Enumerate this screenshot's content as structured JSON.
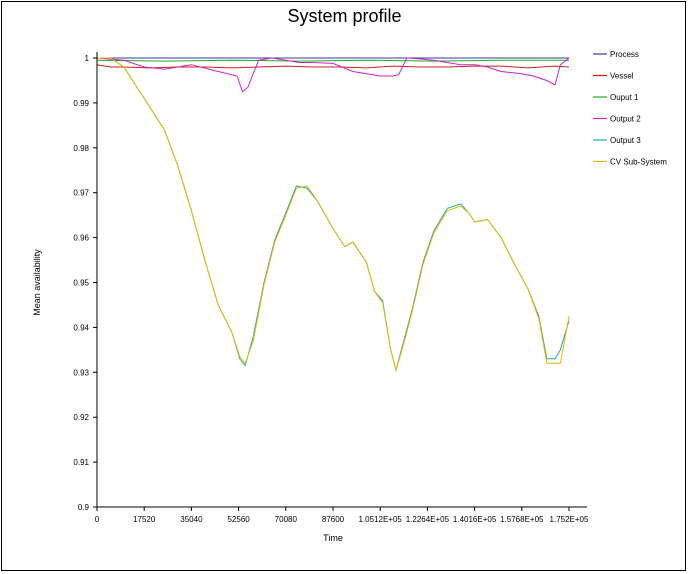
{
  "chart_data": {
    "type": "line",
    "title": "System profile",
    "xlabel": "Time",
    "ylabel": "Mean availability",
    "xlim": [
      0,
      175200
    ],
    "ylim": [
      0.9,
      1.0
    ],
    "x_ticks": [
      {
        "value": 0,
        "label": "0"
      },
      {
        "value": 17520,
        "label": "17520"
      },
      {
        "value": 35040,
        "label": "35040"
      },
      {
        "value": 52560,
        "label": "52560"
      },
      {
        "value": 70080,
        "label": "70080"
      },
      {
        "value": 87600,
        "label": "87600"
      },
      {
        "value": 105120,
        "label": "1.0512E+05"
      },
      {
        "value": 122640,
        "label": "1.2264E+05"
      },
      {
        "value": 140160,
        "label": "1.4016E+05"
      },
      {
        "value": 157680,
        "label": "1.5768E+05"
      },
      {
        "value": 175200,
        "label": "1.752E+05"
      }
    ],
    "y_ticks": [
      {
        "value": 0.9,
        "label": "0.9"
      },
      {
        "value": 0.91,
        "label": "0.91"
      },
      {
        "value": 0.92,
        "label": "0.92"
      },
      {
        "value": 0.93,
        "label": "0.93"
      },
      {
        "value": 0.94,
        "label": "0.94"
      },
      {
        "value": 0.95,
        "label": "0.95"
      },
      {
        "value": 0.96,
        "label": "0.96"
      },
      {
        "value": 0.97,
        "label": "0.97"
      },
      {
        "value": 0.98,
        "label": "0.98"
      },
      {
        "value": 0.99,
        "label": "0.99"
      },
      {
        "value": 1.0,
        "label": "1"
      }
    ],
    "grid": false,
    "legend_position": "right",
    "series": [
      {
        "name": "Process",
        "color": "#3b3b9a",
        "x": [
          0,
          175200
        ],
        "y": [
          1.0,
          1.0
        ]
      },
      {
        "name": "Vessel",
        "color": "#cc2222",
        "x": [
          0,
          5000,
          10000,
          20000,
          30000,
          40000,
          50000,
          60000,
          70000,
          80000,
          90000,
          100000,
          110000,
          120000,
          130000,
          140000,
          150000,
          160000,
          170000,
          175200
        ],
        "y": [
          0.9985,
          0.998,
          0.998,
          0.9978,
          0.998,
          0.998,
          0.9978,
          0.998,
          0.9982,
          0.998,
          0.998,
          0.9978,
          0.9982,
          0.998,
          0.998,
          0.9982,
          0.9982,
          0.9978,
          0.9982,
          0.998
        ]
      },
      {
        "name": "Ouput 1",
        "color": "#22aa22",
        "x": [
          0,
          25000,
          50000,
          75000,
          100000,
          125000,
          150000,
          175200
        ],
        "y": [
          0.9995,
          0.9993,
          0.9995,
          0.9993,
          0.9995,
          0.9993,
          0.9995,
          0.9995
        ]
      },
      {
        "name": "Output 2",
        "color": "#cc22cc",
        "x": [
          0,
          10000,
          17520,
          25000,
          35040,
          45000,
          52000,
          54000,
          56000,
          60000,
          65000,
          70080,
          75000,
          80000,
          87600,
          95000,
          100000,
          105120,
          110000,
          112000,
          115000,
          120000,
          125000,
          130000,
          135000,
          140160,
          145000,
          150000,
          157680,
          162000,
          167000,
          170000,
          172000,
          175200
        ],
        "y": [
          1.0,
          0.9995,
          0.998,
          0.9975,
          0.9985,
          0.997,
          0.996,
          0.9925,
          0.9935,
          0.9995,
          1.0,
          0.9995,
          0.999,
          0.999,
          0.9988,
          0.997,
          0.9965,
          0.996,
          0.996,
          0.9963,
          1.0,
          0.9998,
          0.9995,
          0.999,
          0.9985,
          0.9985,
          0.998,
          0.997,
          0.9965,
          0.996,
          0.995,
          0.994,
          0.9985,
          1.0
        ]
      },
      {
        "name": "Output 3",
        "color": "#22aaaa",
        "x": [
          0,
          5000,
          10000,
          17520,
          25000,
          30000,
          35040,
          40000,
          45000,
          50000,
          53000,
          55000,
          58000,
          62000,
          66000,
          70080,
          74000,
          78000,
          82000,
          87600,
          92000,
          95000,
          100000,
          103000,
          106000,
          109000,
          111000,
          113000,
          117000,
          121000,
          125000,
          130000,
          135000,
          138000,
          140160,
          145000,
          150000,
          155000,
          160000,
          164000,
          167000,
          170000,
          172000,
          175200
        ],
        "y": [
          1.0,
          1.0,
          0.998,
          0.991,
          0.984,
          0.976,
          0.966,
          0.955,
          0.945,
          0.939,
          0.933,
          0.9315,
          0.938,
          0.95,
          0.9595,
          0.9655,
          0.9715,
          0.971,
          0.968,
          0.962,
          0.958,
          0.959,
          0.9545,
          0.948,
          0.946,
          0.935,
          0.9305,
          0.935,
          0.944,
          0.9545,
          0.9615,
          0.9665,
          0.9675,
          0.9655,
          0.9635,
          0.964,
          0.96,
          0.954,
          0.9485,
          0.9425,
          0.933,
          0.933,
          0.935,
          0.9415
        ]
      },
      {
        "name": "CV Sub-System",
        "color": "#e6b800",
        "x": [
          0,
          5000,
          10000,
          17520,
          25000,
          30000,
          35040,
          40000,
          45000,
          50000,
          53000,
          55000,
          58000,
          62000,
          66000,
          70080,
          74000,
          78000,
          82000,
          87600,
          92000,
          95000,
          100000,
          103000,
          106000,
          109000,
          111000,
          113000,
          117000,
          121000,
          125000,
          130000,
          135000,
          138000,
          140160,
          145000,
          150000,
          155000,
          160000,
          164000,
          167000,
          170000,
          172000,
          175200
        ],
        "y": [
          1.0,
          1.0,
          0.998,
          0.991,
          0.984,
          0.976,
          0.966,
          0.955,
          0.945,
          0.939,
          0.9335,
          0.932,
          0.937,
          0.9495,
          0.959,
          0.965,
          0.971,
          0.9715,
          0.968,
          0.962,
          0.958,
          0.959,
          0.9545,
          0.948,
          0.9455,
          0.935,
          0.9305,
          0.9345,
          0.9435,
          0.954,
          0.961,
          0.966,
          0.967,
          0.9655,
          0.9635,
          0.964,
          0.96,
          0.954,
          0.9485,
          0.942,
          0.932,
          0.932,
          0.932,
          0.9425
        ]
      }
    ]
  }
}
